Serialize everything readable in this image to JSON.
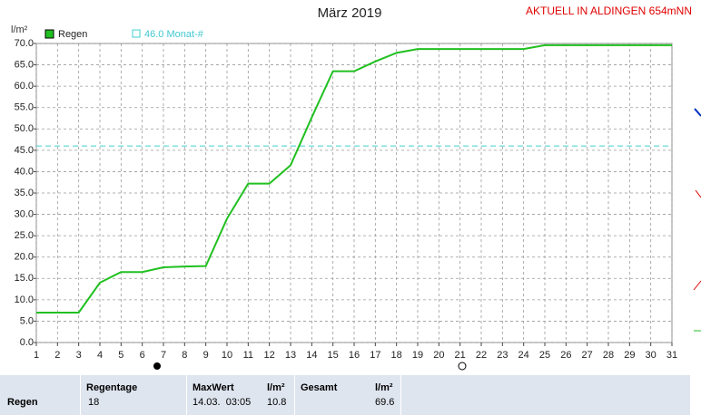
{
  "chart_data": {
    "type": "line",
    "title": "März 2019",
    "annotation": "AKTUELL IN ALDINGEN 654mNN",
    "ylabel": "l/m²",
    "x": [
      1,
      2,
      3,
      4,
      5,
      6,
      7,
      8,
      9,
      10,
      11,
      12,
      13,
      14,
      15,
      16,
      17,
      18,
      19,
      20,
      21,
      22,
      23,
      24,
      25,
      26,
      27,
      28,
      29,
      30,
      31
    ],
    "series": [
      {
        "name": "Regen",
        "color": "#20c020",
        "values": [
          7,
          7,
          7,
          14,
          16.5,
          16.5,
          17.6,
          17.8,
          17.9,
          29,
          37.2,
          37.2,
          41.5,
          52.7,
          63.5,
          63.5,
          65.8,
          67.8,
          68.7,
          68.7,
          68.7,
          68.7,
          68.7,
          68.7,
          69.6,
          69.6,
          69.6,
          69.6,
          69.6,
          69.6,
          69.6
        ]
      }
    ],
    "reference": {
      "name": "46.0 Monat-#",
      "value": 46,
      "color": "#40d0d0"
    },
    "xlim": [
      1,
      31
    ],
    "xticks": [
      1,
      2,
      3,
      4,
      5,
      6,
      7,
      8,
      9,
      10,
      11,
      12,
      13,
      14,
      15,
      16,
      17,
      18,
      19,
      20,
      21,
      22,
      23,
      24,
      25,
      26,
      27,
      28,
      29,
      30,
      31
    ],
    "ylim": [
      0,
      70
    ],
    "yticks": [
      {
        "value": 0,
        "label": "0.0"
      },
      {
        "value": 5,
        "label": "5.0"
      },
      {
        "value": 10,
        "label": "10.0"
      },
      {
        "value": 15,
        "label": "15.0"
      },
      {
        "value": 20,
        "label": "20.0"
      },
      {
        "value": 25,
        "label": "25.0"
      },
      {
        "value": 30,
        "label": "30.0"
      },
      {
        "value": 35,
        "label": "35.0"
      },
      {
        "value": 40,
        "label": "40.0"
      },
      {
        "value": 45,
        "label": "45.0"
      },
      {
        "value": 50,
        "label": "50.0"
      },
      {
        "value": 55,
        "label": "55.0"
      },
      {
        "value": 60,
        "label": "60.0"
      },
      {
        "value": 65,
        "label": "65.0"
      },
      {
        "value": 70,
        "label": "70.0"
      }
    ],
    "grid": true
  },
  "table": {
    "row_label": "Regen",
    "regentage": {
      "header": "Regentage",
      "value": "18"
    },
    "maxwert": {
      "header": "MaxWert",
      "unit": "l/m²",
      "date": "14.03.  03:05",
      "value": "10.8"
    },
    "gesamt": {
      "header": "Gesamt",
      "unit": "l/m²",
      "value": "69.6"
    }
  }
}
